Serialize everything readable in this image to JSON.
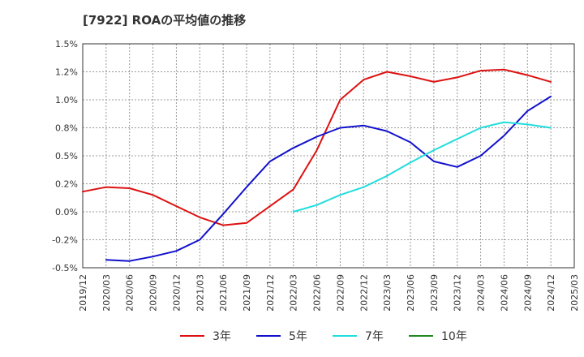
{
  "chart_data": {
    "type": "line",
    "title": "[7922]  ROAの平均値の推移",
    "xlabel": "",
    "ylabel": "",
    "ylim": [
      -0.5,
      1.5
    ],
    "yticks": [
      "1.5%",
      "1.2%",
      "1.0%",
      "0.8%",
      "0.5%",
      "0.2%",
      "0.0%",
      "-0.2%",
      "-0.5%"
    ],
    "ytick_values": [
      1.5,
      1.25,
      1.0,
      0.75,
      0.5,
      0.25,
      0.0,
      -0.25,
      -0.5
    ],
    "xticks": [
      "2019/12",
      "2020/03",
      "2020/06",
      "2020/09",
      "2020/12",
      "2021/03",
      "2021/06",
      "2021/09",
      "2021/12",
      "2022/03",
      "2022/06",
      "2022/09",
      "2022/12",
      "2023/03",
      "2023/06",
      "2023/09",
      "2023/12",
      "2024/03",
      "2024/06",
      "2024/09",
      "2024/12",
      "2025/03"
    ],
    "grid": true,
    "legend_position": "bottom",
    "series": [
      {
        "name": "3年",
        "color": "#dd1111",
        "values": [
          0.18,
          0.22,
          0.21,
          0.15,
          0.05,
          -0.05,
          -0.12,
          -0.1,
          0.05,
          0.2,
          0.55,
          1.0,
          1.18,
          1.25,
          1.21,
          1.16,
          1.2,
          1.26,
          1.27,
          1.22,
          1.16
        ]
      },
      {
        "name": "5年",
        "color": "#1111cc",
        "values": [
          null,
          -0.43,
          -0.44,
          -0.4,
          -0.35,
          -0.25,
          -0.02,
          0.22,
          0.45,
          0.57,
          0.67,
          0.75,
          0.77,
          0.72,
          0.62,
          0.45,
          0.4,
          0.5,
          0.68,
          0.9,
          1.03
        ]
      },
      {
        "name": "7年",
        "color": "#22dddd",
        "values": [
          null,
          null,
          null,
          null,
          null,
          null,
          null,
          null,
          null,
          0.0,
          0.06,
          0.15,
          0.22,
          0.32,
          0.44,
          0.55,
          0.65,
          0.75,
          0.8,
          0.78,
          0.75
        ]
      },
      {
        "name": "10年",
        "color": "#228822",
        "values": []
      }
    ]
  }
}
